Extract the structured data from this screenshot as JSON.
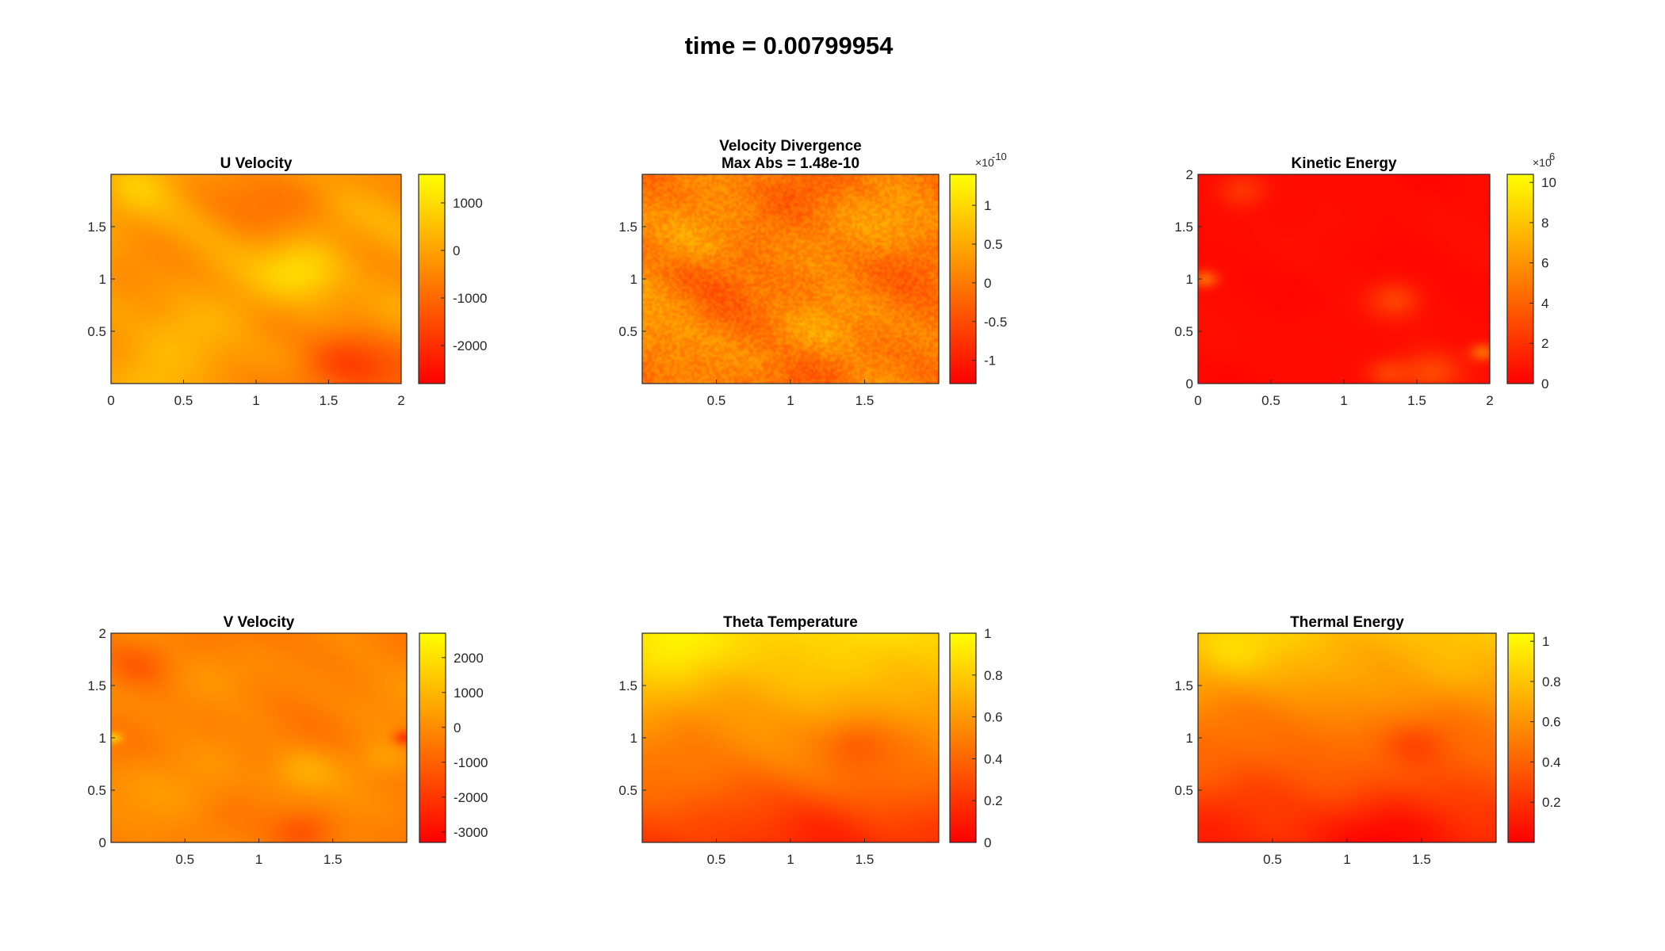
{
  "figure": {
    "suptitle": "time = 0.00799954",
    "colors": {
      "colormap_low": "#ff0000",
      "colormap_mid": "#ff8000",
      "colormap_high": "#ffff00",
      "axis": "#262626",
      "text": "#000000"
    }
  },
  "chart_data": [
    {
      "id": "u",
      "type": "heatmap",
      "title": "U Velocity",
      "x_ticks": [
        "0",
        "0.5",
        "1",
        "1.5",
        "2"
      ],
      "y_ticks": [
        "0.5",
        "1",
        "1.5"
      ],
      "colorbar": {
        "ticks": [
          "1000",
          "0",
          "-1000",
          "-2000"
        ],
        "exponent": "",
        "range": [
          -2800,
          1600
        ]
      },
      "field": {
        "base": 0.6,
        "noise": 0.07,
        "blobs": [
          [
            1.35,
            1.05,
            0.22,
            0.3
          ],
          [
            0.15,
            1.9,
            0.2,
            0.18
          ],
          [
            1.75,
            0.1,
            0.3,
            -0.25
          ],
          [
            1.6,
            0.3,
            0.2,
            -0.15
          ],
          [
            0.3,
            0.1,
            0.25,
            0.12
          ],
          [
            1.0,
            1.6,
            0.35,
            -0.08
          ],
          [
            0.6,
            0.9,
            0.3,
            0.05
          ]
        ]
      }
    },
    {
      "id": "div",
      "type": "heatmap",
      "title": "Velocity Divergence",
      "subtitle": "Max Abs = 1.48e-10",
      "x_ticks": [
        "0.5",
        "1",
        "1.5"
      ],
      "y_ticks": [
        "0.5",
        "1",
        "1.5"
      ],
      "colorbar": {
        "ticks": [
          "1",
          "0.5",
          "0",
          "-0.5",
          "-1"
        ],
        "exponent": "-10",
        "range": [
          -1.3,
          1.4
        ]
      },
      "field": {
        "base": 0.5,
        "noise": 0.12,
        "blobs": []
      }
    },
    {
      "id": "ke",
      "type": "heatmap",
      "title": "Kinetic Energy",
      "x_ticks": [
        "0",
        "0.5",
        "1",
        "1.5",
        "2"
      ],
      "y_ticks": [
        "0",
        "0.5",
        "1",
        "1.5",
        "2"
      ],
      "colorbar": {
        "ticks": [
          "10",
          "8",
          "6",
          "4",
          "2",
          "0"
        ],
        "exponent": "6",
        "range": [
          0,
          10.4
        ]
      },
      "field": {
        "base": 0.04,
        "noise": 0.015,
        "blobs": [
          [
            0.05,
            1.0,
            0.06,
            0.35
          ],
          [
            1.95,
            0.3,
            0.06,
            0.35
          ],
          [
            0.3,
            1.85,
            0.12,
            0.18
          ],
          [
            1.35,
            0.8,
            0.12,
            0.2
          ],
          [
            1.6,
            0.1,
            0.15,
            0.25
          ],
          [
            1.3,
            0.1,
            0.1,
            0.18
          ]
        ]
      }
    },
    {
      "id": "v",
      "type": "heatmap",
      "title": "V Velocity",
      "x_ticks": [
        "0.5",
        "1",
        "1.5"
      ],
      "y_ticks": [
        "0",
        "0.5",
        "1",
        "1.5",
        "2"
      ],
      "colorbar": {
        "ticks": [
          "2000",
          "1000",
          "0",
          "-1000",
          "-2000",
          "-3000"
        ],
        "exponent": "",
        "range": [
          -3300,
          2700
        ]
      },
      "field": {
        "base": 0.52,
        "noise": 0.05,
        "blobs": [
          [
            0.2,
            1.7,
            0.15,
            -0.12
          ],
          [
            1.3,
            0.7,
            0.15,
            0.12
          ],
          [
            1.85,
            0.8,
            0.12,
            0.1
          ],
          [
            1.3,
            0.1,
            0.15,
            -0.18
          ],
          [
            1.98,
            1.0,
            0.05,
            -0.3
          ],
          [
            0.02,
            1.0,
            0.04,
            0.3
          ],
          [
            0.6,
            0.5,
            0.3,
            0.04
          ]
        ]
      }
    },
    {
      "id": "theta",
      "type": "heatmap",
      "title": "Theta Temperature",
      "x_ticks": [
        "0.5",
        "1",
        "1.5"
      ],
      "y_ticks": [
        "0.5",
        "1",
        "1.5"
      ],
      "colorbar": {
        "ticks": [
          "1",
          "0.8",
          "0.6",
          "0.4",
          "0.2",
          "0"
        ],
        "exponent": "",
        "range": [
          0,
          1
        ]
      },
      "field": {
        "base": 0.55,
        "gradient": 0.32,
        "noise": 0.04,
        "blobs": [
          [
            1.45,
            0.95,
            0.15,
            -0.12
          ],
          [
            0.2,
            1.85,
            0.2,
            0.12
          ],
          [
            1.3,
            0.15,
            0.25,
            -0.1
          ]
        ]
      }
    },
    {
      "id": "te",
      "type": "heatmap",
      "title": "Thermal Energy",
      "x_ticks": [
        "0.5",
        "1",
        "1.5"
      ],
      "y_ticks": [
        "0.5",
        "1",
        "1.5"
      ],
      "colorbar": {
        "ticks": [
          "1",
          "0.8",
          "0.6",
          "0.4",
          "0.2"
        ],
        "exponent": "",
        "range": [
          0,
          1.04
        ]
      },
      "field": {
        "base": 0.45,
        "gradient": 0.32,
        "noise": 0.04,
        "blobs": [
          [
            1.45,
            0.95,
            0.15,
            -0.12
          ],
          [
            0.2,
            1.85,
            0.2,
            0.12
          ],
          [
            1.3,
            0.15,
            0.25,
            -0.1
          ]
        ]
      }
    }
  ]
}
